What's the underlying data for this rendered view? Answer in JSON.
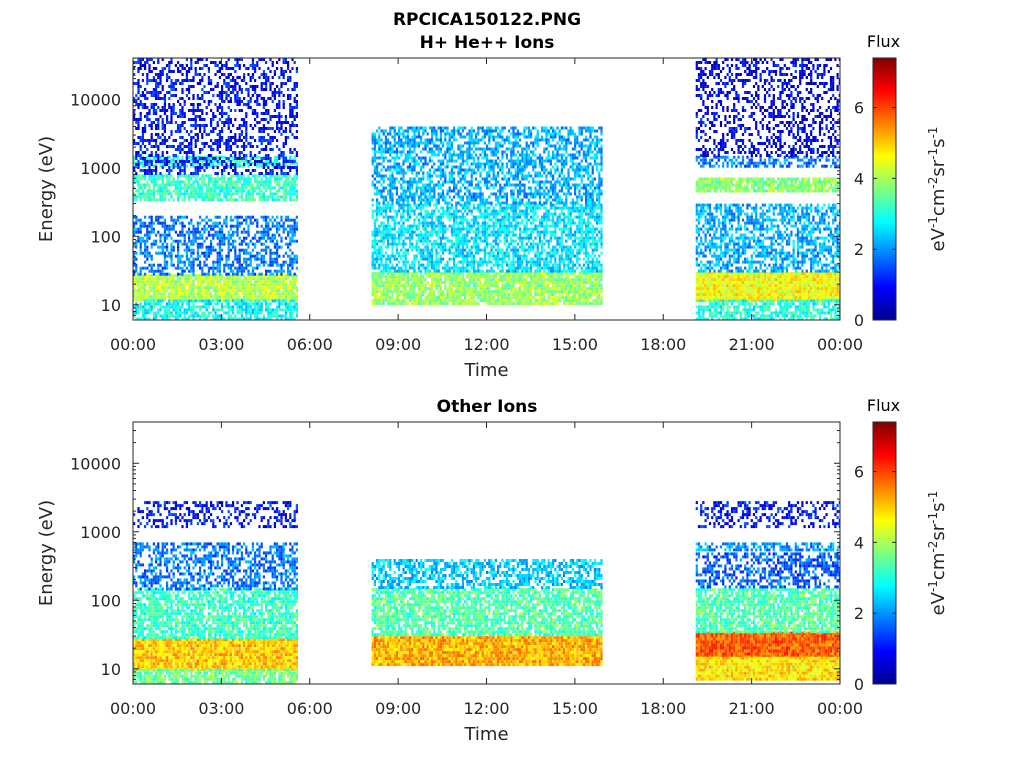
{
  "figure": {
    "title_line1": "RPCICA150122.PNG",
    "title_line2": "H+ He++ Ions",
    "title_lower": "Other Ions"
  },
  "chart_data": [
    {
      "type": "heatmap",
      "title": "H+ He++ Ions",
      "xlabel": "Time",
      "ylabel": "Energy (eV)",
      "yscale": "log",
      "ylim": [
        6,
        40000
      ],
      "xlim": [
        "00:00",
        "24:00"
      ],
      "x_ticks": [
        "00:00",
        "03:00",
        "06:00",
        "09:00",
        "12:00",
        "15:00",
        "18:00",
        "21:00",
        "00:00"
      ],
      "y_ticks": [
        "10",
        "100",
        "1000",
        "10000"
      ],
      "y_tick_values": [
        10,
        100,
        1000,
        10000
      ],
      "colorbar": {
        "title": "Flux",
        "label": "eV-1cm-2sr-1s-1",
        "range": [
          0,
          7.4
        ],
        "ticks": [
          0,
          2,
          4,
          6
        ],
        "colormap": "jet"
      },
      "data_gaps_hours": [
        [
          5.6,
          8.1
        ],
        [
          15.9,
          19.1
        ]
      ],
      "segments": [
        {
          "start_h": 0,
          "end_h": 5.6,
          "bands": [
            {
              "e_low": 12,
              "e_high": 28,
              "flux": 4.1
            },
            {
              "e_low": 6,
              "e_high": 12,
              "flux": 2.8
            },
            {
              "e_low": 28,
              "e_high": 200,
              "flux": 1.8
            },
            {
              "e_low": 350,
              "e_high": 800,
              "flux": 3.2
            },
            {
              "e_low": 1100,
              "e_high": 1500,
              "flux": 3.0
            },
            {
              "e_low": 800,
              "e_high": 40000,
              "flux": 1.0
            }
          ]
        },
        {
          "start_h": 8.1,
          "end_h": 15.9,
          "bands": [
            {
              "e_low": 10,
              "e_high": 30,
              "flux": 3.9
            },
            {
              "e_low": 30,
              "e_high": 300,
              "flux": 2.6
            },
            {
              "e_low": 300,
              "e_high": 4000,
              "flux": 2.2
            }
          ]
        },
        {
          "start_h": 19.1,
          "end_h": 24,
          "bands": [
            {
              "e_low": 12,
              "e_high": 30,
              "flux": 4.6
            },
            {
              "e_low": 6,
              "e_high": 12,
              "flux": 3.0
            },
            {
              "e_low": 30,
              "e_high": 300,
              "flux": 2.2
            },
            {
              "e_low": 480,
              "e_high": 720,
              "flux": 3.8
            },
            {
              "e_low": 1100,
              "e_high": 1500,
              "flux": 1.8
            },
            {
              "e_low": 1500,
              "e_high": 40000,
              "flux": 0.8
            }
          ]
        }
      ]
    },
    {
      "type": "heatmap",
      "title": "Other Ions",
      "xlabel": "Time",
      "ylabel": "Energy (eV)",
      "yscale": "log",
      "ylim": [
        6,
        40000
      ],
      "xlim": [
        "00:00",
        "24:00"
      ],
      "x_ticks": [
        "00:00",
        "03:00",
        "06:00",
        "09:00",
        "12:00",
        "15:00",
        "18:00",
        "21:00",
        "00:00"
      ],
      "y_ticks": [
        "10",
        "100",
        "1000",
        "10000"
      ],
      "y_tick_values": [
        10,
        100,
        1000,
        10000
      ],
      "colorbar": {
        "title": "Flux",
        "label": "eV-1cm-2sr-1s-1",
        "range": [
          0,
          7.4
        ],
        "ticks": [
          0,
          2,
          4,
          6
        ],
        "colormap": "jet"
      },
      "data_gaps_hours": [
        [
          5.6,
          8.1
        ],
        [
          15.9,
          19.1
        ]
      ],
      "segments": [
        {
          "start_h": 0,
          "end_h": 5.6,
          "bands": [
            {
              "e_low": 10,
              "e_high": 28,
              "flux": 5.0
            },
            {
              "e_low": 6,
              "e_high": 10,
              "flux": 3.6
            },
            {
              "e_low": 28,
              "e_high": 150,
              "flux": 3.2
            },
            {
              "e_low": 150,
              "e_high": 700,
              "flux": 1.8
            },
            {
              "e_low": 1200,
              "e_high": 2800,
              "flux": 1.0
            }
          ]
        },
        {
          "start_h": 8.1,
          "end_h": 15.9,
          "bands": [
            {
              "e_low": 12,
              "e_high": 30,
              "flux": 5.2
            },
            {
              "e_low": 30,
              "e_high": 150,
              "flux": 3.4
            },
            {
              "e_low": 150,
              "e_high": 400,
              "flux": 2.4
            }
          ]
        },
        {
          "start_h": 19.1,
          "end_h": 24,
          "bands": [
            {
              "e_low": 15,
              "e_high": 35,
              "flux": 5.8
            },
            {
              "e_low": 7,
              "e_high": 15,
              "flux": 4.8
            },
            {
              "e_low": 35,
              "e_high": 150,
              "flux": 3.4
            },
            {
              "e_low": 150,
              "e_high": 500,
              "flux": 1.6
            },
            {
              "e_low": 550,
              "e_high": 700,
              "flux": 2.0
            },
            {
              "e_low": 1200,
              "e_high": 2800,
              "flux": 1.0
            }
          ]
        }
      ]
    }
  ]
}
